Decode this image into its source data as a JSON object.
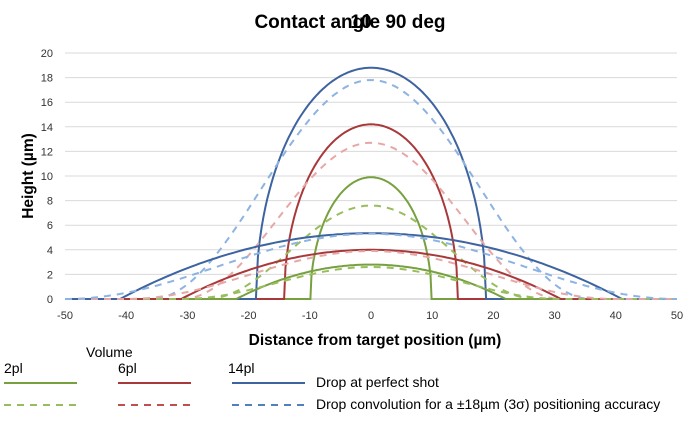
{
  "chart_data": {
    "type": "line",
    "title": "Contact angle 90 deg",
    "title_overlay": "10",
    "xlabel": "Distance from target position (µm)",
    "ylabel": "Height (µm)",
    "xlim": [
      -50,
      50
    ],
    "ylim": [
      0,
      20
    ],
    "x_ticks": [
      "-50",
      "-40",
      "-30",
      "-20",
      "-10",
      "0",
      "10",
      "20",
      "30",
      "40",
      "50"
    ],
    "y_ticks": [
      "0",
      "2",
      "4",
      "6",
      "8",
      "10",
      "12",
      "14",
      "16",
      "18",
      "20"
    ],
    "grid": true,
    "legend_placement": "bottom",
    "legend": {
      "volume_title": "Volume",
      "volumes": [
        "2pl",
        "6pl",
        "14pl"
      ],
      "solid_label": "Drop at perfect shot",
      "dashed_label": "Drop convolution for a ±18µm (3σ) positioning accuracy"
    },
    "colors": {
      "2pl": "#77a040",
      "6pl": "#a8383a",
      "14pl": "#3d63a0",
      "2pl_dashed": "#98bd5c",
      "6pl_dashed": "#e6a8a6",
      "14pl_dashed": "#8db3e2"
    },
    "series": [
      {
        "volume": "2pl",
        "style": "solid",
        "shape": "cap",
        "radius": 9.9,
        "height": 9.9
      },
      {
        "volume": "6pl",
        "style": "solid",
        "shape": "cap",
        "radius": 14.2,
        "height": 14.2
      },
      {
        "volume": "14pl",
        "style": "solid",
        "shape": "cap",
        "radius": 18.8,
        "height": 18.8
      },
      {
        "volume": "2pl",
        "style": "dashed",
        "shape": "bell",
        "height": 7.6,
        "extent": 27
      },
      {
        "volume": "6pl",
        "style": "dashed",
        "shape": "bell",
        "height": 12.7,
        "extent": 31
      },
      {
        "volume": "14pl",
        "style": "dashed",
        "shape": "bell",
        "height": 17.8,
        "extent": 36
      },
      {
        "volume": "2pl",
        "style": "solid",
        "shape": "cap",
        "radius": 22,
        "height": 2.8
      },
      {
        "volume": "6pl",
        "style": "solid",
        "shape": "cap",
        "radius": 31,
        "height": 4.0
      },
      {
        "volume": "14pl",
        "style": "solid",
        "shape": "cap",
        "radius": 41,
        "height": 5.35
      },
      {
        "volume": "2pl",
        "style": "dashed",
        "shape": "bell",
        "height": 2.6,
        "extent": 31
      },
      {
        "volume": "6pl",
        "style": "dashed",
        "shape": "bell",
        "height": 3.9,
        "extent": 40
      },
      {
        "volume": "14pl",
        "style": "dashed",
        "shape": "bell",
        "height": 5.3,
        "extent": 50
      }
    ]
  }
}
